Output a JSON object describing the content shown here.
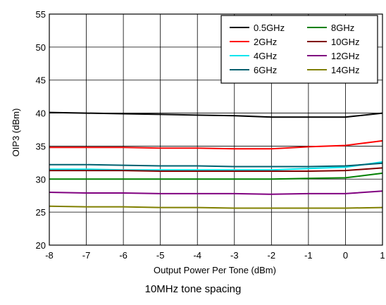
{
  "caption": "10MHz tone spacing",
  "chart_data": {
    "type": "line",
    "title": "",
    "xlabel": "Output Power Per Tone (dBm)",
    "ylabel": "OIP3 (dBm)",
    "xlim": [
      -8,
      1
    ],
    "ylim": [
      20,
      55
    ],
    "xticks": [
      -8,
      -7,
      -6,
      -5,
      -4,
      -3,
      -2,
      -1,
      0,
      1
    ],
    "yticks": [
      20,
      25,
      30,
      35,
      40,
      45,
      50,
      55
    ],
    "grid": true,
    "legend_position": "top-right",
    "x": [
      -8,
      -7,
      -6,
      -5,
      -4,
      -3,
      -2,
      -1,
      0,
      1
    ],
    "series": [
      {
        "name": "0.5GHz",
        "color": "#000000",
        "values": [
          40.1,
          40.0,
          39.9,
          39.8,
          39.7,
          39.6,
          39.4,
          39.4,
          39.4,
          40.0
        ]
      },
      {
        "name": "2GHz",
        "color": "#ff0000",
        "values": [
          34.8,
          34.8,
          34.8,
          34.7,
          34.7,
          34.6,
          34.6,
          34.9,
          35.1,
          35.8
        ]
      },
      {
        "name": "4GHz",
        "color": "#00e5ee",
        "values": [
          31.5,
          31.5,
          31.4,
          31.4,
          31.4,
          31.4,
          31.4,
          31.6,
          31.8,
          32.6
        ]
      },
      {
        "name": "6GHz",
        "color": "#00606f",
        "values": [
          32.2,
          32.2,
          32.1,
          32.0,
          32.0,
          31.9,
          31.9,
          31.9,
          32.0,
          32.4
        ]
      },
      {
        "name": "8GHz",
        "color": "#008000",
        "values": [
          30.0,
          30.0,
          30.0,
          30.0,
          30.0,
          30.0,
          30.0,
          30.1,
          30.2,
          30.9
        ]
      },
      {
        "name": "10GHz",
        "color": "#800000",
        "values": [
          31.3,
          31.3,
          31.3,
          31.2,
          31.2,
          31.2,
          31.2,
          31.2,
          31.3,
          31.7
        ]
      },
      {
        "name": "12GHz",
        "color": "#800080",
        "values": [
          28.0,
          27.9,
          27.9,
          27.8,
          27.8,
          27.8,
          27.7,
          27.8,
          27.8,
          28.2
        ]
      },
      {
        "name": "14GHz",
        "color": "#808000",
        "values": [
          25.9,
          25.8,
          25.8,
          25.7,
          25.7,
          25.6,
          25.6,
          25.6,
          25.6,
          25.7
        ]
      }
    ]
  }
}
